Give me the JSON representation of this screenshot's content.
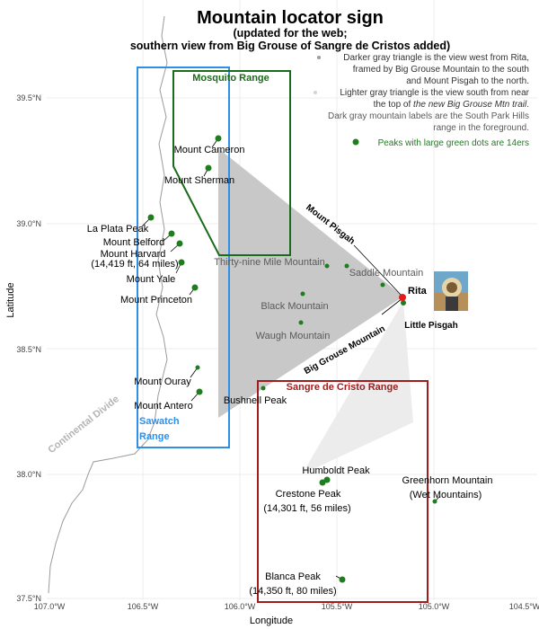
{
  "title": "Mountain locator sign",
  "subtitle_line1": "(updated for the web;",
  "subtitle_line2": "southern view from Big Grouse of Sangre de Cristos added)",
  "legend": {
    "dark_triangle": [
      "Darker gray triangle is the view  west from Rita,",
      "framed by Big Grouse Mountain to the south",
      "and Mount Pisgah to the north."
    ],
    "light_triangle": [
      "Lighter gray triangle is the view south from near",
      "the top of "
    ],
    "light_triangle_italic": "the new Big Grouse Mtn trail",
    "light_triangle_end": ".",
    "park_labels": [
      "Dark gray mountain labels are the South Park Hills",
      "range in the foreground."
    ],
    "green_dots": "Peaks with large green dots are 14ers"
  },
  "axes": {
    "x_label": "Longitude",
    "y_label": "Latitude",
    "x_ticks": [
      "107.0°W",
      "106.5°W",
      "106.0°W",
      "105.5°W",
      "105.0°W",
      "104.5°W"
    ],
    "y_ticks": [
      "37.5°N",
      "38.0°N",
      "38.5°N",
      "39.0°N",
      "39.5°N"
    ]
  },
  "ranges": [
    {
      "name": "Mosquito Range",
      "color": "#1a6b1a"
    },
    {
      "name": "Sawatch",
      "name2": "Range",
      "color": "#2f8fe8"
    },
    {
      "name": "Sangre de Cristo Range",
      "color": "#a11d1d"
    }
  ],
  "continental_divide": "Continental Divide",
  "peaks": {
    "cameron": "Mount Cameron",
    "sherman": "Mount Sherman",
    "laplata": "La Plata Peak",
    "belford": "Mount Belford",
    "harvard": "Mount Harvard",
    "harvard_sub": "(14,419 ft, 64 miles)",
    "yale": "Mount Yale",
    "princeton": "Mount Princeton",
    "ouray": "Mount Ouray",
    "antero": "Mount Antero",
    "bushnell": "Bushnell Peak",
    "humboldt": "Humboldt Peak",
    "crestone": "Crestone Peak",
    "crestone_sub": "(14,301 ft, 56 miles)",
    "greenhorn": "Greenhorn Mountain",
    "greenhorn_sub": "(Wet Mountains)",
    "blanca": "Blanca Peak",
    "blanca_sub": "(14,350 ft, 80 miles)",
    "thirtynine": "Thirty-nine Mile Mountain",
    "saddle": "Saddle Mountain",
    "black": "Black Mountain",
    "waugh": "Waugh Mountain",
    "rita": "Rita",
    "little_pisgah": "Little Pisgah",
    "mount_pisgah": "Mount Pisgah",
    "big_grouse": "Big Grouse Mountain"
  },
  "colors": {
    "peak_green": "#1e7d1e",
    "rita_red": "#e41a1c",
    "dark_triangle": "#c8c8c8",
    "light_triangle": "#ececec",
    "park_label": "#5a5a5a"
  },
  "icons": [
    "rita-photo-icon"
  ]
}
